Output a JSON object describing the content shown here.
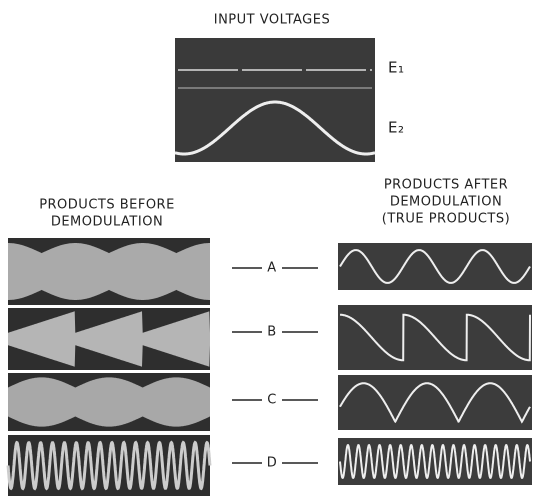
{
  "title": "INPUT VOLTAGES",
  "inputs": [
    "E₁",
    "E₂"
  ],
  "before_heading": [
    "PRODUCTS BEFORE",
    "DEMODULATION"
  ],
  "after_heading": [
    "PRODUCTS AFTER",
    "DEMODULATION",
    "(TRUE PRODUCTS)"
  ],
  "rows": [
    "A",
    "B",
    "C",
    "D"
  ]
}
